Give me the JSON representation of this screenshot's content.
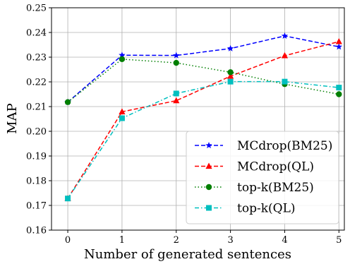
{
  "chart_data": {
    "type": "line",
    "xlabel": "Number of generated sentences",
    "ylabel": "MAP",
    "x": [
      0,
      1,
      2,
      3,
      4,
      5
    ],
    "xlim": [
      -0.3,
      5.1
    ],
    "ylim": [
      0.16,
      0.25
    ],
    "xticks": [
      "0",
      "1",
      "2",
      "3",
      "4",
      "5"
    ],
    "yticks": [
      "0.16",
      "0.17",
      "0.18",
      "0.19",
      "0.20",
      "0.21",
      "0.22",
      "0.23",
      "0.24",
      "0.25"
    ],
    "grid": true,
    "legend_position": "lower-right",
    "series": [
      {
        "name": "MCdrop(BM25)",
        "values": [
          0.2118,
          0.2308,
          0.2307,
          0.2335,
          0.2386,
          0.2342
        ],
        "color": "#0000ff",
        "dash": "dashed",
        "marker": "star"
      },
      {
        "name": "MCdrop(QL)",
        "values": [
          0.1728,
          0.2079,
          0.2124,
          0.2223,
          0.2306,
          0.2363
        ],
        "color": "#ff0000",
        "dash": "dashed",
        "marker": "triangle"
      },
      {
        "name": "top-k(BM25)",
        "values": [
          0.2118,
          0.2292,
          0.2277,
          0.2239,
          0.2191,
          0.215
        ],
        "color": "#007f00",
        "dash": "dotted",
        "marker": "circle"
      },
      {
        "name": "top-k(QL)",
        "values": [
          0.1728,
          0.2053,
          0.2153,
          0.2201,
          0.2201,
          0.2177
        ],
        "color": "#00bfbf",
        "dash": "dashdot",
        "marker": "square"
      }
    ]
  }
}
